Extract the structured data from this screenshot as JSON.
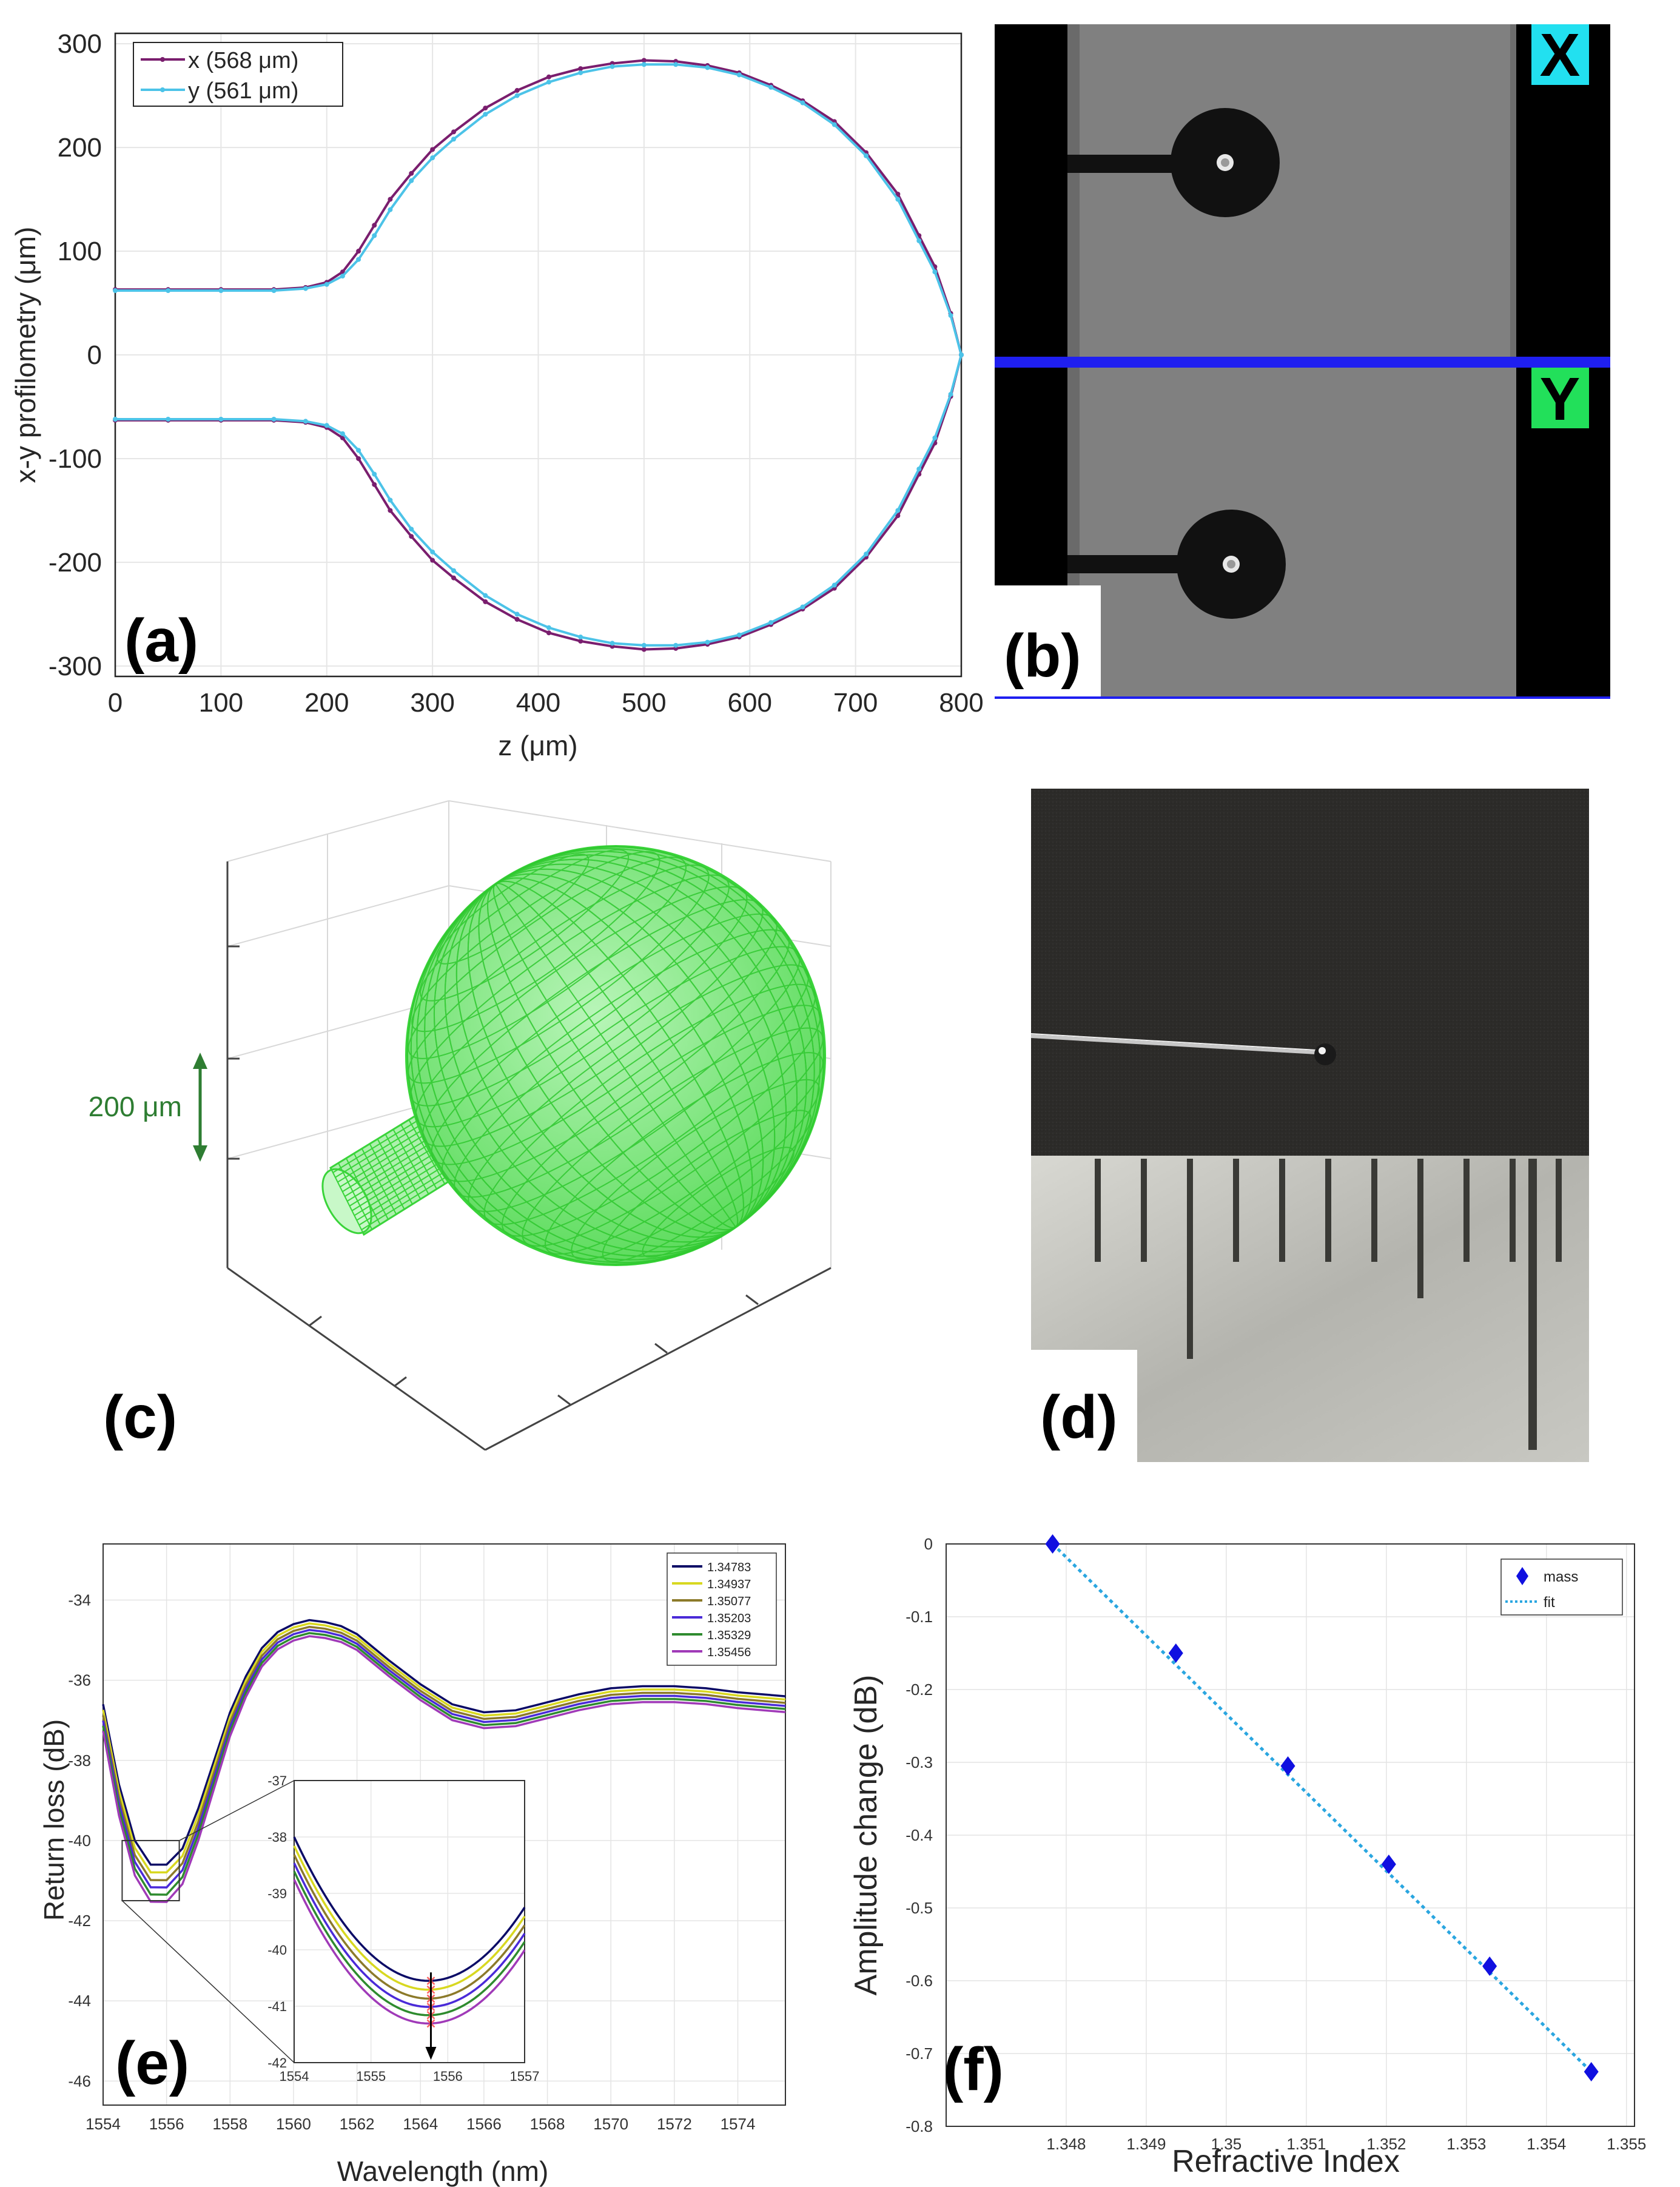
{
  "panel_labels": {
    "a": "(a)",
    "b": "(b)",
    "c": "(c)",
    "d": "(d)",
    "e": "(e)",
    "f": "(f)"
  },
  "colors": {
    "x_series": "#7a1e6e",
    "y_series": "#4cc3e8",
    "wire_green": "#3ad43a",
    "scale_green": "#2e7d32",
    "divider_blue": "#1f1ff0",
    "badge_x": "#22e0f0",
    "badge_y": "#22e05a",
    "mass_blue": "#1010e0",
    "fit_blue": "#2aa6e0"
  },
  "panel_b": {
    "badge_x": "X",
    "badge_y": "Y"
  },
  "panel_c": {
    "scale_label": "200 μm"
  },
  "chart_data": [
    {
      "id": "a",
      "type": "line",
      "xlabel": "z (μm)",
      "ylabel": "x-y profilometry (μm)",
      "xlim": [
        0,
        800
      ],
      "ylim": [
        -310,
        310
      ],
      "xticks": [
        0,
        100,
        200,
        300,
        400,
        500,
        600,
        700,
        800
      ],
      "yticks": [
        -300,
        -200,
        -100,
        0,
        100,
        200,
        300
      ],
      "grid": true,
      "legend": "top-left",
      "series": [
        {
          "name": "x (568 μm)",
          "color": "#7a1e6e",
          "x": [
            0,
            50,
            100,
            150,
            180,
            200,
            215,
            230,
            245,
            260,
            280,
            300,
            320,
            350,
            380,
            410,
            440,
            470,
            500,
            530,
            560,
            590,
            620,
            650,
            680,
            710,
            740,
            760,
            775,
            790,
            800
          ],
          "y": [
            63,
            63,
            63,
            63,
            65,
            70,
            80,
            100,
            125,
            150,
            175,
            198,
            215,
            238,
            255,
            268,
            276,
            281,
            284,
            283,
            279,
            272,
            260,
            245,
            225,
            195,
            155,
            115,
            85,
            40,
            0
          ]
        },
        {
          "name": "y (561 μm)",
          "color": "#4cc3e8",
          "x": [
            0,
            50,
            100,
            150,
            180,
            200,
            215,
            230,
            245,
            260,
            280,
            300,
            320,
            350,
            380,
            410,
            440,
            470,
            500,
            530,
            560,
            590,
            620,
            650,
            680,
            710,
            740,
            760,
            775,
            790,
            800
          ],
          "y": [
            62,
            62,
            62,
            62,
            64,
            68,
            76,
            92,
            115,
            140,
            168,
            190,
            208,
            232,
            250,
            263,
            272,
            278,
            280,
            280,
            277,
            270,
            258,
            243,
            222,
            192,
            150,
            110,
            80,
            38,
            0
          ]
        }
      ]
    },
    {
      "id": "e",
      "type": "line",
      "xlabel": "Wavelength (nm)",
      "ylabel": "Return loss (dB)",
      "xlim": [
        1554,
        1575.5
      ],
      "ylim": [
        -46.6,
        -32.6
      ],
      "xticks": [
        1554,
        1556,
        1558,
        1560,
        1562,
        1564,
        1566,
        1568,
        1570,
        1572,
        1574
      ],
      "yticks": [
        -46,
        -44,
        -42,
        -40,
        -38,
        -36,
        -34
      ],
      "grid": true,
      "legend": "top-right",
      "series": [
        {
          "name": "1.34783",
          "color": "#0b0b66",
          "offset": 0
        },
        {
          "name": "1.34937",
          "color": "#d8d820",
          "offset": -0.15
        },
        {
          "name": "1.35077",
          "color": "#8c7a2a",
          "offset": -0.3
        },
        {
          "name": "1.35203",
          "color": "#4a2ad8",
          "offset": -0.44
        },
        {
          "name": "1.35329",
          "color": "#2e8b2e",
          "offset": -0.58
        },
        {
          "name": "1.35456",
          "color": "#a03ab8",
          "offset": -0.72
        }
      ],
      "base_curve": {
        "x": [
          1554,
          1554.5,
          1555,
          1555.5,
          1556,
          1556.5,
          1557,
          1557.5,
          1558,
          1558.5,
          1559,
          1559.5,
          1560,
          1560.5,
          1561,
          1561.5,
          1562,
          1563,
          1564,
          1565,
          1566,
          1567,
          1568,
          1569,
          1570,
          1571,
          1572,
          1573,
          1574,
          1575.5
        ],
        "y": [
          -36.6,
          -38.6,
          -40.0,
          -40.6,
          -40.6,
          -40.2,
          -39.2,
          -38.0,
          -36.8,
          -35.9,
          -35.2,
          -34.8,
          -34.6,
          -34.5,
          -34.55,
          -34.65,
          -34.85,
          -35.5,
          -36.1,
          -36.6,
          -36.8,
          -36.75,
          -36.55,
          -36.35,
          -36.2,
          -36.15,
          -36.15,
          -36.2,
          -36.3,
          -36.4
        ]
      },
      "inset": {
        "xlim": [
          1554,
          1557
        ],
        "ylim": [
          -42,
          -37
        ],
        "xticks": [
          1554,
          1555,
          1556,
          1557
        ],
        "yticks": [
          -42,
          -41,
          -40,
          -39,
          -38,
          -37
        ]
      }
    },
    {
      "id": "f",
      "type": "scatter",
      "xlabel": "Refractive Index",
      "ylabel": "Amplitude change (dB)",
      "xlim": [
        1.3465,
        1.3551
      ],
      "ylim": [
        -0.8,
        0
      ],
      "xticks": [
        1.348,
        1.349,
        1.35,
        1.351,
        1.352,
        1.353,
        1.354,
        1.355
      ],
      "xtick_labels": [
        "1.348",
        "1.349",
        "1.35",
        "1.351",
        "1.352",
        "1.353",
        "1.354",
        "1.355"
      ],
      "yticks": [
        0,
        -0.1,
        -0.2,
        -0.3,
        -0.4,
        -0.5,
        -0.6,
        -0.7,
        -0.8
      ],
      "ytick_labels": [
        "0",
        "-0.1",
        "-0.2",
        "-0.3",
        "-0.4",
        "-0.5",
        "-0.6",
        "-0.7",
        "-0.8"
      ],
      "grid": true,
      "legend": "top-right",
      "series": [
        {
          "name": "mass",
          "color": "#1010e0",
          "x": [
            1.34783,
            1.34937,
            1.35077,
            1.35203,
            1.35329,
            1.35456
          ],
          "y": [
            0,
            -0.15,
            -0.305,
            -0.44,
            -0.58,
            -0.725
          ]
        },
        {
          "name": "fit",
          "color": "#2aa6e0",
          "x": [
            1.34783,
            1.35456
          ],
          "y": [
            0,
            -0.725
          ]
        }
      ]
    }
  ]
}
